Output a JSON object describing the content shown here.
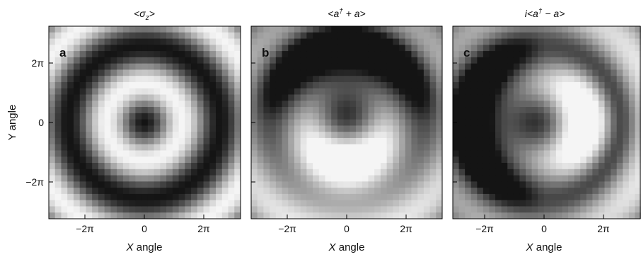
{
  "figure": {
    "y_label": "Y angle",
    "x_label": "X angle"
  },
  "chart_data": [
    {
      "type": "heatmap",
      "panel_letter": "a",
      "title": "<σ_z>",
      "title_parts": {
        "pre": "<σ",
        "sub": "z",
        "post": ">"
      },
      "xlabel": "X angle",
      "ylabel": "Y angle",
      "x_ticks": [
        {
          "label": "−2π",
          "value": -6.283
        },
        {
          "label": "0",
          "value": 0
        },
        {
          "label": "2π",
          "value": 6.283
        }
      ],
      "y_ticks": [
        {
          "label": "2π",
          "value": 6.283
        },
        {
          "label": "0",
          "value": 0
        },
        {
          "label": "−2π",
          "value": -6.283
        }
      ],
      "xlim": [
        -9.4,
        9.4
      ],
      "ylim": [
        -9.4,
        9.4
      ],
      "grid_size": 31,
      "colormap": "grayscale (black = low, white = high)",
      "pattern": "concentric rings centered at origin; dark center, dark ring at radius ≈ 1.3π"
    },
    {
      "type": "heatmap",
      "panel_letter": "b",
      "title": "<a† + a>",
      "title_parts": {
        "pre": "<a",
        "sup": "†",
        "post": " + a>"
      },
      "xlabel": "X angle",
      "x_ticks": [
        {
          "label": "−2π",
          "value": -6.283
        },
        {
          "label": "0",
          "value": 0
        },
        {
          "label": "2π",
          "value": 6.283
        }
      ],
      "xlim": [
        -9.4,
        9.4
      ],
      "ylim": [
        -9.4,
        9.4
      ],
      "grid_size": 31,
      "colormap": "grayscale (black = low, white = high)",
      "pattern": "rings with vertical (up/down) asymmetry; dark blob above center, bright below"
    },
    {
      "type": "heatmap",
      "panel_letter": "c",
      "title": "i<a† − a>",
      "title_parts": {
        "pre": "i<a",
        "sup": "†",
        "post": " − a>"
      },
      "xlabel": "X angle",
      "x_ticks": [
        {
          "label": "−2π",
          "value": -6.283
        },
        {
          "label": "0",
          "value": 0
        },
        {
          "label": "2π",
          "value": 6.283
        }
      ],
      "xlim": [
        -9.4,
        9.4
      ],
      "ylim": [
        -9.4,
        9.4
      ],
      "grid_size": 31,
      "colormap": "grayscale (black = low, white = high)",
      "pattern": "rings with horizontal (left/right) asymmetry; dark blob left of center, bright right"
    }
  ]
}
